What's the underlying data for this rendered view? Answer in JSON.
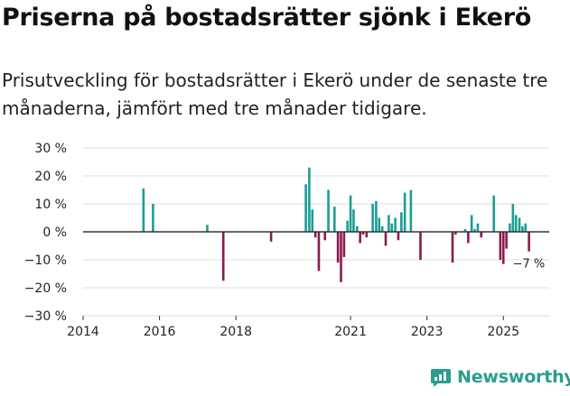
{
  "title": "Priserna på bostadsrätter sjönk i Ekerö",
  "subtitle": "Prisutveckling för bostadsrätter i Ekerö under de senaste tre månaderna, jämfört med tre månader tidigare.",
  "logo": {
    "text": "Newsworthy",
    "icon": "newsworthy-chart-icon"
  },
  "colors": {
    "positive": "#1a9e96",
    "negative": "#8b1a4e",
    "brand": "#2a9d8f",
    "grid": "#dddddd",
    "zero": "#333333"
  },
  "chart_data": {
    "type": "bar",
    "title": "Priserna på bostadsrätter sjönk i Ekerö",
    "xlabel": "",
    "ylabel": "",
    "ylim": [
      -30,
      30
    ],
    "xlim": [
      2014,
      2026.2
    ],
    "yticks": [
      -30,
      -20,
      -10,
      0,
      10,
      20,
      30
    ],
    "ytick_labels": [
      "−30 %",
      "−20 %",
      "−10 %",
      "0 %",
      "10 %",
      "20 %",
      "30 %"
    ],
    "xticks": [
      2014,
      2016,
      2018,
      2021,
      2023,
      2025
    ],
    "xtick_labels": [
      "2014",
      "2016",
      "2018",
      "2021",
      "2023",
      "2025"
    ],
    "annotation": {
      "text": "−7 %",
      "x": 2025.67,
      "y": -7
    },
    "x": [
      2015.58,
      2015.83,
      2017.25,
      2017.67,
      2018.92,
      2019.83,
      2019.92,
      2020.0,
      2020.08,
      2020.17,
      2020.33,
      2020.42,
      2020.58,
      2020.67,
      2020.75,
      2020.83,
      2020.92,
      2021.0,
      2021.08,
      2021.17,
      2021.25,
      2021.33,
      2021.42,
      2021.58,
      2021.67,
      2021.75,
      2021.83,
      2021.92,
      2022.0,
      2022.08,
      2022.17,
      2022.25,
      2022.33,
      2022.42,
      2022.58,
      2022.83,
      2023.67,
      2023.75,
      2024.0,
      2024.08,
      2024.17,
      2024.25,
      2024.33,
      2024.42,
      2024.75,
      2024.92,
      2025.0,
      2025.08,
      2025.17,
      2025.25,
      2025.33,
      2025.42,
      2025.5,
      2025.58,
      2025.67
    ],
    "values": [
      15.5,
      10,
      2.5,
      -17.5,
      -3.5,
      17,
      23,
      8,
      -2,
      -14,
      -3,
      15,
      9,
      -11,
      -18,
      -9,
      4,
      13,
      8,
      2,
      -4,
      -1,
      -2,
      10,
      11,
      5,
      2,
      -5,
      6,
      3,
      5,
      -3,
      7,
      14,
      15,
      -10,
      -11,
      -1,
      1,
      -4,
      6,
      1,
      3,
      -2,
      13,
      -10,
      -11.5,
      -6,
      3,
      10,
      6,
      5,
      2,
      3,
      -7
    ]
  }
}
